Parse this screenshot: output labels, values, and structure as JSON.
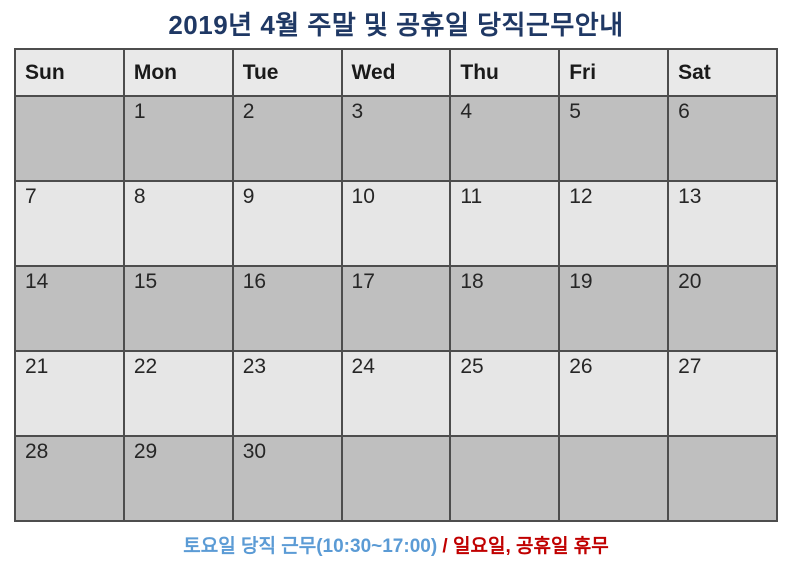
{
  "title": "2019년 4월 주말 및 공휴일 당직근무안내",
  "calendar": {
    "month_label": "2019-04",
    "day_headers": [
      {
        "label": "Sun",
        "color": "#FF0000"
      },
      {
        "label": "Mon",
        "color": "#1A1A1A"
      },
      {
        "label": "Tue",
        "color": "#1A1A1A"
      },
      {
        "label": "Wed",
        "color": "#1A1A1A"
      },
      {
        "label": "Thu",
        "color": "#1A1A1A"
      },
      {
        "label": "Fri",
        "color": "#1A1A1A"
      },
      {
        "label": "Sat",
        "color": "#0070C0"
      }
    ],
    "weeks": [
      [
        "",
        "1",
        "2",
        "3",
        "4",
        "5",
        "6"
      ],
      [
        "7",
        "8",
        "9",
        "10",
        "11",
        "12",
        "13"
      ],
      [
        "14",
        "15",
        "16",
        "17",
        "18",
        "19",
        "20"
      ],
      [
        "21",
        "22",
        "23",
        "24",
        "25",
        "26",
        "27"
      ],
      [
        "28",
        "29",
        "30",
        "",
        "",
        "",
        ""
      ]
    ]
  },
  "footer": {
    "saturday_note": "토요일 당직 근무(10:30~17:00)",
    "separator": " / ",
    "holiday_note": "일요일, 공휴일 휴무"
  },
  "colors": {
    "title": "#1F3864",
    "header_background": "#E9E9E9",
    "row_dark_background": "#BFBFBF",
    "row_light_background": "#E6E6E6",
    "grid_border": "#4D4D4D",
    "sunday_number": "#C00000",
    "saturday_number": "#6FA8DC",
    "weekday_number": "#262626",
    "footer_blue": "#5B9BD5",
    "footer_red": "#C00000"
  }
}
